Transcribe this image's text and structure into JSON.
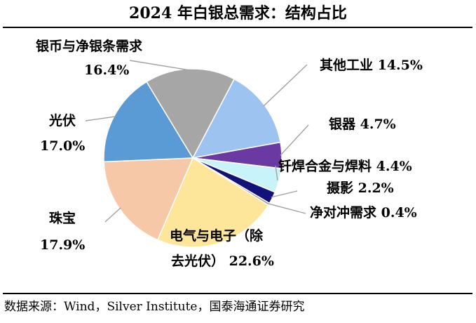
{
  "title": "2024 年白银总需求：结构占比",
  "source": "数据来源：Wind，Silver Institute，国泰海通证券研究",
  "chart_data": {
    "type": "pie",
    "title": "2024 年白银总需求：结构占比",
    "series": [
      {
        "name": "其他工业",
        "value": 14.5,
        "label": "其他工业 14.5%",
        "color": "#9dc3f0"
      },
      {
        "name": "银器",
        "value": 4.7,
        "label": "银器 4.7%",
        "color": "#6a3aa2"
      },
      {
        "name": "钎焊合金与焊料",
        "value": 4.4,
        "label": "钎焊合金与焊料 4.4%",
        "color": "#c8f3f8"
      },
      {
        "name": "摄影",
        "value": 2.2,
        "label": "摄影 2.2%",
        "color": "#12127a"
      },
      {
        "name": "净对冲需求",
        "value": 0.4,
        "label": "净对冲需求 0.4%",
        "color": "#9a9a9a"
      },
      {
        "name": "电气与电子（除去光伏）",
        "value": 22.6,
        "label_lines": [
          "电气与电子（除",
          "去光伏） 22.6%"
        ],
        "color": "#fde59a"
      },
      {
        "name": "珠宝",
        "value": 17.9,
        "label_lines": [
          "珠宝",
          "17.9%"
        ],
        "color": "#f6c8a8"
      },
      {
        "name": "光伏",
        "value": 17.0,
        "label_lines": [
          "光伏",
          "17.0%"
        ],
        "color": "#5b9bd5"
      },
      {
        "name": "银币与净银条需求",
        "value": 16.4,
        "label_lines": [
          "银币与净银条需求",
          "16.4%"
        ],
        "color": "#a6a6a6"
      }
    ]
  }
}
